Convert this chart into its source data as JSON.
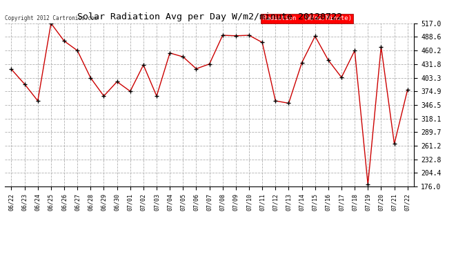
{
  "title": "Solar Radiation Avg per Day W/m2/minute 20120722",
  "copyright": "Copyright 2012 Cartronics.com",
  "legend_label": "Radiation  (W/m2/Minute)",
  "background_color": "#ffffff",
  "plot_bg_color": "#ffffff",
  "grid_color": "#b0b0b0",
  "line_color": "#cc0000",
  "marker_color": "#000000",
  "ylim": [
    176.0,
    517.0
  ],
  "yticks": [
    176.0,
    204.4,
    232.8,
    261.2,
    289.7,
    318.1,
    346.5,
    374.9,
    403.3,
    431.8,
    460.2,
    488.6,
    517.0
  ],
  "labels": [
    "06/22",
    "06/23",
    "06/24",
    "06/25",
    "06/26",
    "06/27",
    "06/28",
    "06/29",
    "06/30",
    "07/01",
    "07/02",
    "07/03",
    "07/04",
    "07/05",
    "07/06",
    "07/07",
    "07/08",
    "07/09",
    "07/10",
    "07/11",
    "07/12",
    "07/13",
    "07/14",
    "07/15",
    "07/16",
    "07/17",
    "07/18",
    "07/19",
    "07/20",
    "07/21",
    "07/22"
  ],
  "values": [
    421.0,
    390.0,
    355.0,
    517.0,
    480.0,
    460.0,
    403.0,
    365.0,
    395.0,
    375.0,
    430.0,
    365.0,
    455.0,
    447.0,
    422.0,
    432.0,
    492.0,
    491.0,
    492.0,
    477.0,
    355.0,
    350.0,
    435.0,
    490.0,
    440.0,
    404.0,
    460.0,
    180.0,
    468.0,
    265.0,
    378.0
  ]
}
